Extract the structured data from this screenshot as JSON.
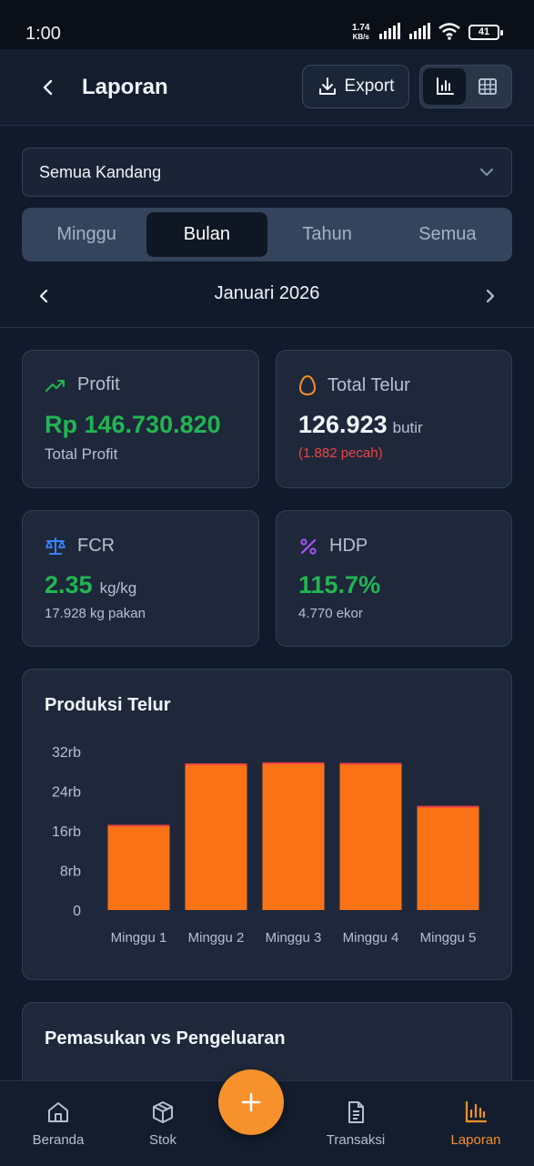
{
  "status_bar": {
    "time": "1:00",
    "net_speed": "1.74",
    "net_unit": "KB/s",
    "battery": "41"
  },
  "header": {
    "title": "Laporan",
    "export_label": "Export"
  },
  "filter": {
    "kandang": "Semua Kandang"
  },
  "period_tabs": [
    "Minggu",
    "Bulan",
    "Tahun",
    "Semua"
  ],
  "selected_tab": "Bulan",
  "period_label": "Januari 2026",
  "stats": {
    "profit": {
      "title": "Profit",
      "value": "Rp 146.730.820",
      "caption": "Total Profit"
    },
    "eggs": {
      "title": "Total Telur",
      "value": "126.923",
      "unit": "butir",
      "note": "(1.882 pecah)"
    },
    "fcr": {
      "title": "FCR",
      "value": "2.35",
      "unit": "kg/kg",
      "caption": "17.928 kg pakan"
    },
    "hdp": {
      "title": "HDP",
      "value": "115.7%",
      "caption": "4.770 ekor"
    }
  },
  "chart_data": {
    "type": "bar",
    "title": "Produksi Telur",
    "categories": [
      "Minggu 1",
      "Minggu 2",
      "Minggu 3",
      "Minggu 4",
      "Minggu 5"
    ],
    "series": [
      {
        "values": [
          17200,
          29600,
          29800,
          29700,
          21000
        ],
        "color": "#f97316"
      }
    ],
    "ylim": [
      0,
      32000
    ],
    "yticks": [
      0,
      8000,
      16000,
      24000,
      32000
    ],
    "ytick_labels": [
      "0",
      "8rb",
      "16rb",
      "24rb",
      "32rb"
    ],
    "xlabel": "",
    "ylabel": "",
    "grid": false
  },
  "second_card": {
    "title": "Pemasukan vs Pengeluaran"
  },
  "bottom_nav": {
    "beranda": "Beranda",
    "stok": "Stok",
    "transaksi": "Transaksi",
    "laporan": "Laporan"
  },
  "colors": {
    "accent": "#f7912b",
    "positive": "#22b552",
    "negative": "#ef4444",
    "bar": "#f97316"
  }
}
